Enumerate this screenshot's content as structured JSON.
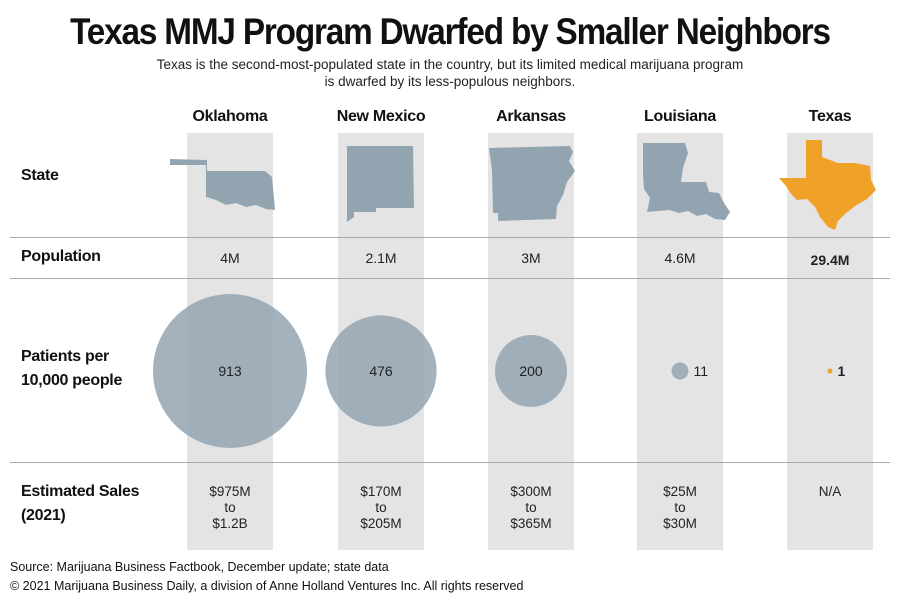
{
  "title": "Texas MMJ Program Dwarfed by Smaller Neighbors",
  "subtitle": "Texas is the second-most-populated state in the country, but its limited medical marijuana program is dwarfed by its less-populous neighbors.",
  "row_labels": {
    "state": "State",
    "population": "Population",
    "patients_line1": "Patients per",
    "patients_line2": "10,000 people",
    "sales_line1": "Estimated Sales",
    "sales_line2": "(2021)"
  },
  "colors": {
    "neighbor": "#93a4b1",
    "texas": "#f0a128",
    "band": "#e4e4e4"
  },
  "chart_data": {
    "type": "table",
    "title": "Texas MMJ Program Dwarfed by Smaller Neighbors",
    "metric": "Patients per 10,000 people",
    "states": [
      {
        "name": "Oklahoma",
        "population": "4M",
        "patients_per_10k": 913,
        "patients_label": "913",
        "sales": [
          "$975M",
          "to",
          "$1.2B"
        ],
        "highlight": false
      },
      {
        "name": "New Mexico",
        "population": "2.1M",
        "patients_per_10k": 476,
        "patients_label": "476",
        "sales": [
          "$170M",
          "to",
          "$205M"
        ],
        "highlight": false
      },
      {
        "name": "Arkansas",
        "population": "3M",
        "patients_per_10k": 200,
        "patients_label": "200",
        "sales": [
          "$300M",
          "to",
          "$365M"
        ],
        "highlight": false
      },
      {
        "name": "Louisiana",
        "population": "4.6M",
        "patients_per_10k": 11,
        "patients_label": "11",
        "sales": [
          "$25M",
          "to",
          "$30M"
        ],
        "highlight": false
      },
      {
        "name": "Texas",
        "population": "29.4M",
        "patients_per_10k": 1,
        "patients_label": "1",
        "sales": [
          "N/A"
        ],
        "highlight": true
      }
    ]
  },
  "footer": {
    "source": "Source: Marijuana Business Factbook, December update; state data",
    "copyright": "© 2021 Marijuana Business Daily, a division of Anne Holland Ventures Inc. All rights reserved"
  }
}
